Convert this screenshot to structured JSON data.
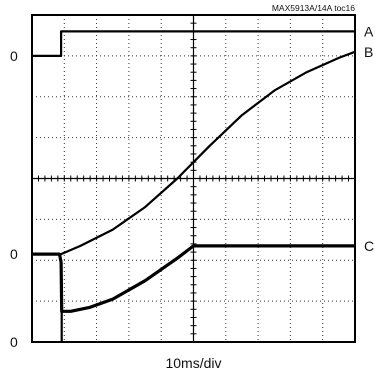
{
  "chart_data": {
    "type": "line",
    "title": "",
    "annotation": "MAX5913A/14A toc16",
    "xlabel": "10ms/div",
    "ylabel": "",
    "x_divisions": 10,
    "y_divisions": 8,
    "grid": true,
    "xlim": [
      0,
      10
    ],
    "ylim": [
      0,
      8
    ],
    "zero_markers": [
      {
        "label": "0",
        "y": 7.0
      },
      {
        "label": "0",
        "y": 2.15
      },
      {
        "label": "0",
        "y": 0.0
      }
    ],
    "series": [
      {
        "name": "A",
        "color": "#000000",
        "x": [
          0,
          0.9,
          0.9,
          10
        ],
        "y": [
          7.0,
          7.0,
          7.6,
          7.6
        ]
      },
      {
        "name": "B",
        "color": "#000000",
        "x": [
          0,
          0.9,
          1.5,
          2.5,
          3.5,
          4.5,
          5.5,
          6.5,
          7.5,
          8.5,
          9.5,
          10
        ],
        "y": [
          2.15,
          2.15,
          2.35,
          2.75,
          3.3,
          4.0,
          4.8,
          5.55,
          6.15,
          6.6,
          6.95,
          7.1
        ]
      },
      {
        "name": "C",
        "color": "#000000",
        "x": [
          0,
          0.85,
          0.9,
          0.92,
          1.2,
          1.8,
          2.5,
          3.5,
          4.5,
          5.0,
          6.0,
          7.0,
          8.0,
          9.0,
          10
        ],
        "y": [
          2.15,
          2.15,
          1.95,
          0.75,
          0.75,
          0.85,
          1.05,
          1.5,
          2.05,
          2.35,
          2.35,
          2.35,
          2.35,
          2.35,
          2.35
        ]
      },
      {
        "name": "",
        "color": "#000000",
        "x": [
          0.92,
          0.92
        ],
        "y": [
          0.75,
          0.0
        ]
      }
    ]
  }
}
